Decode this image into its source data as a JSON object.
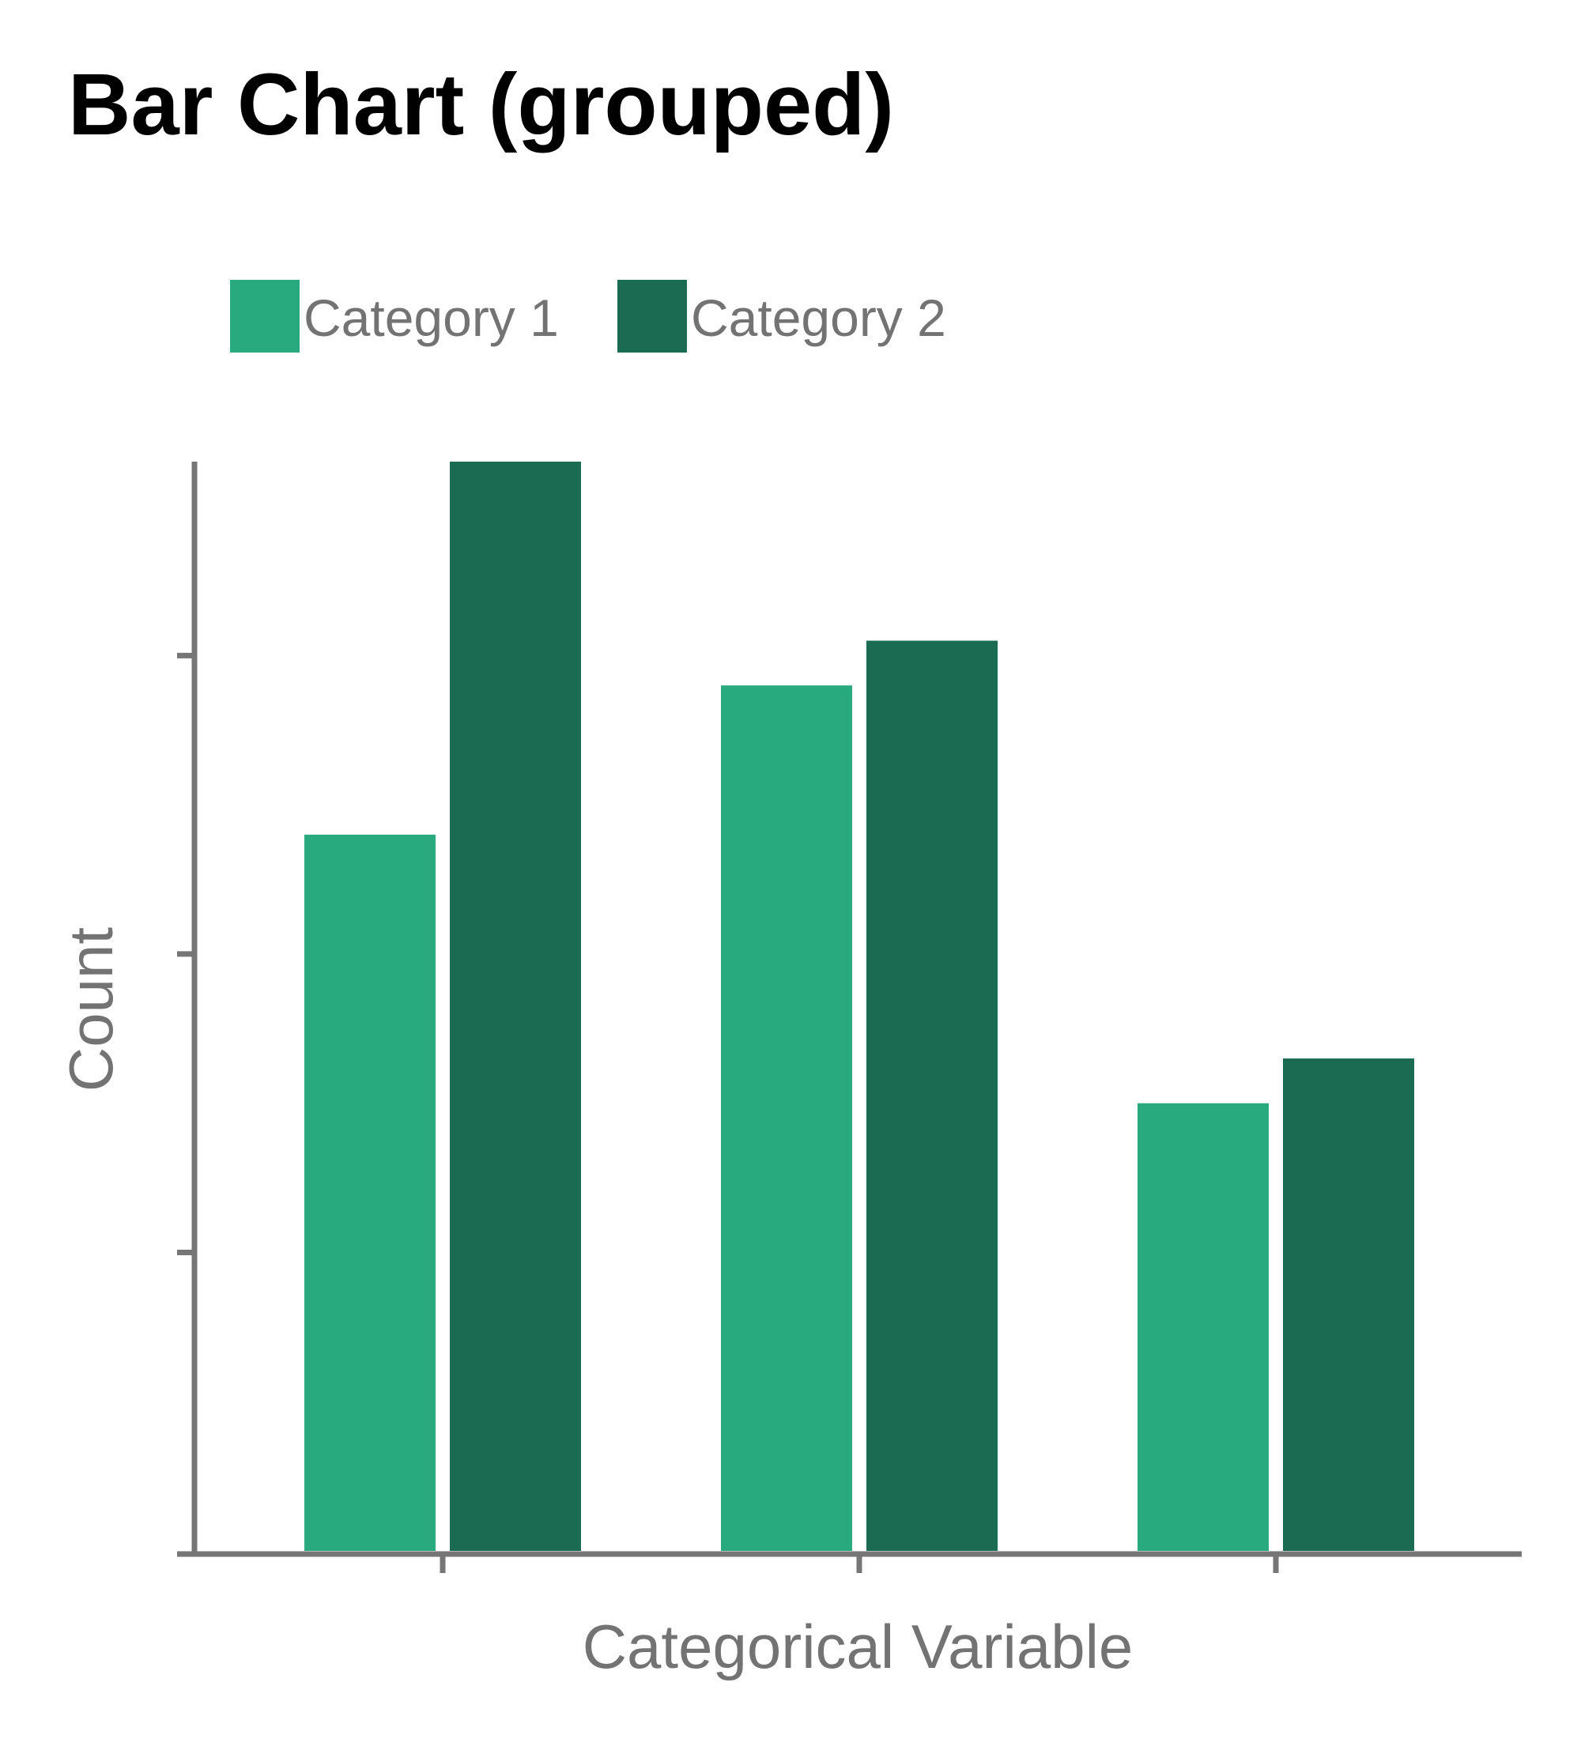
{
  "chart_data": {
    "type": "bar",
    "title": "Bar Chart (grouped)",
    "xlabel": "Categorical Variable",
    "ylabel": "Count",
    "categories": [
      "",
      "",
      ""
    ],
    "series": [
      {
        "name": "Category 1",
        "color": "#29a97e",
        "values": [
          24,
          29,
          15
        ]
      },
      {
        "name": "Category 2",
        "color": "#1a6b51",
        "values": [
          36.5,
          30.5,
          16.5
        ]
      }
    ],
    "ylim": [
      0,
      36.5
    ],
    "y_tick_values": [
      0,
      10,
      20,
      30
    ],
    "x_ticks_labeled": false,
    "y_ticks_labeled": false,
    "grid": false,
    "legend_position": "top-left"
  }
}
